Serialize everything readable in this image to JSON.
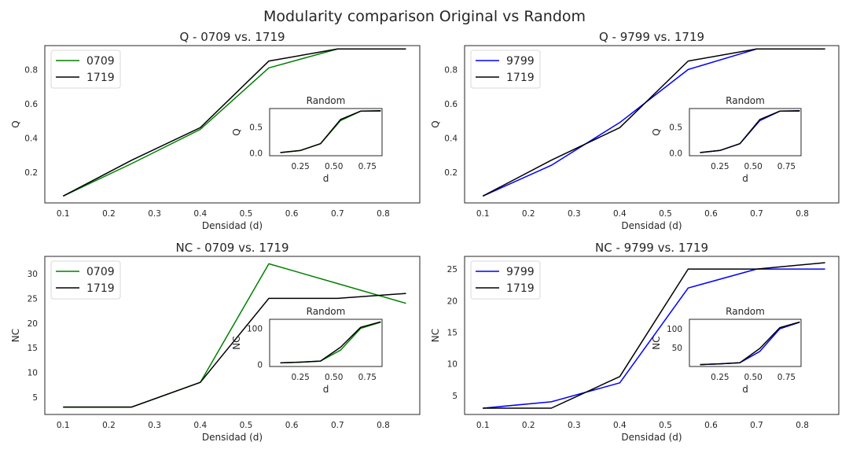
{
  "figure": {
    "title": "Modularity comparison Original vs Random"
  },
  "chart_data": [
    {
      "type": "line",
      "title": "Q - 0709 vs. 1719",
      "xlabel": "Densidad (d)",
      "ylabel": "Q",
      "xlim": [
        0.06,
        0.88
      ],
      "ylim": [
        0.02,
        0.94
      ],
      "xticks": [
        "0.1",
        "0.2",
        "0.3",
        "0.4",
        "0.5",
        "0.6",
        "0.7",
        "0.8"
      ],
      "yticks": [
        "0.2",
        "0.4",
        "0.6",
        "0.8"
      ],
      "grid": false,
      "legend": "upper-left",
      "series": [
        {
          "name": "0709",
          "color": "#008000",
          "x": [
            0.1,
            0.25,
            0.4,
            0.55,
            0.7,
            0.85
          ],
          "y": [
            0.06,
            0.25,
            0.45,
            0.81,
            0.92,
            0.92
          ]
        },
        {
          "name": "1719",
          "color": "#000000",
          "x": [
            0.1,
            0.25,
            0.4,
            0.55,
            0.7,
            0.85
          ],
          "y": [
            0.06,
            0.27,
            0.46,
            0.85,
            0.92,
            0.92
          ]
        }
      ],
      "inset": {
        "title": "Random",
        "xlabel": "d",
        "ylabel": "Q",
        "xlim": [
          0.02,
          0.86
        ],
        "ylim": [
          -0.05,
          0.85
        ],
        "xticks": [
          "0.25",
          "0.50",
          "0.75"
        ],
        "yticks": [
          "0.0",
          "0.5"
        ],
        "series": [
          {
            "color": "#008000",
            "x": [
              0.1,
              0.25,
              0.4,
              0.55,
              0.7,
              0.85
            ],
            "y": [
              0.01,
              0.05,
              0.18,
              0.62,
              0.8,
              0.8
            ]
          },
          {
            "color": "#000000",
            "x": [
              0.1,
              0.25,
              0.4,
              0.55,
              0.7,
              0.85
            ],
            "y": [
              0.01,
              0.05,
              0.18,
              0.64,
              0.8,
              0.81
            ]
          }
        ]
      }
    },
    {
      "type": "line",
      "title": "Q - 9799 vs. 1719",
      "xlabel": "Densidad (d)",
      "ylabel": "Q",
      "xlim": [
        0.06,
        0.88
      ],
      "ylim": [
        0.02,
        0.94
      ],
      "xticks": [
        "0.1",
        "0.2",
        "0.3",
        "0.4",
        "0.5",
        "0.6",
        "0.7",
        "0.8"
      ],
      "yticks": [
        "0.2",
        "0.4",
        "0.6",
        "0.8"
      ],
      "grid": false,
      "legend": "upper-left",
      "series": [
        {
          "name": "9799",
          "color": "#0000ff",
          "x": [
            0.1,
            0.25,
            0.4,
            0.55,
            0.7,
            0.85
          ],
          "y": [
            0.06,
            0.24,
            0.49,
            0.8,
            0.92,
            0.92
          ]
        },
        {
          "name": "1719",
          "color": "#000000",
          "x": [
            0.1,
            0.25,
            0.4,
            0.55,
            0.7,
            0.85
          ],
          "y": [
            0.06,
            0.27,
            0.46,
            0.85,
            0.92,
            0.92
          ]
        }
      ],
      "inset": {
        "title": "Random",
        "xlabel": "d",
        "ylabel": "Q",
        "xlim": [
          0.02,
          0.86
        ],
        "ylim": [
          -0.05,
          0.85
        ],
        "xticks": [
          "0.25",
          "0.50",
          "0.75"
        ],
        "yticks": [
          "0.0",
          "0.5"
        ],
        "series": [
          {
            "color": "#0000ff",
            "x": [
              0.1,
              0.25,
              0.4,
              0.55,
              0.7,
              0.85
            ],
            "y": [
              0.01,
              0.05,
              0.18,
              0.62,
              0.8,
              0.8
            ]
          },
          {
            "color": "#000000",
            "x": [
              0.1,
              0.25,
              0.4,
              0.55,
              0.7,
              0.85
            ],
            "y": [
              0.01,
              0.05,
              0.18,
              0.64,
              0.8,
              0.81
            ]
          }
        ]
      }
    },
    {
      "type": "line",
      "title": "NC - 0709 vs. 1719",
      "xlabel": "Densidad (d)",
      "ylabel": "NC",
      "xlim": [
        0.06,
        0.88
      ],
      "ylim": [
        1.5,
        33.5
      ],
      "xticks": [
        "0.1",
        "0.2",
        "0.3",
        "0.4",
        "0.5",
        "0.6",
        "0.7",
        "0.8"
      ],
      "yticks": [
        "5",
        "10",
        "15",
        "20",
        "25",
        "30"
      ],
      "grid": false,
      "legend": "upper-left",
      "series": [
        {
          "name": "0709",
          "color": "#008000",
          "x": [
            0.1,
            0.25,
            0.4,
            0.55,
            0.7,
            0.85
          ],
          "y": [
            3,
            3,
            8,
            32,
            28,
            24
          ]
        },
        {
          "name": "1719",
          "color": "#000000",
          "x": [
            0.1,
            0.25,
            0.4,
            0.55,
            0.7,
            0.85
          ],
          "y": [
            3,
            3,
            8,
            25,
            25,
            26
          ]
        }
      ],
      "inset": {
        "title": "Random",
        "xlabel": "d",
        "ylabel": "NC",
        "xlim": [
          0.02,
          0.86
        ],
        "ylim": [
          -5,
          125
        ],
        "xticks": [
          "0.25",
          "0.50",
          "0.75"
        ],
        "yticks": [
          "0",
          "100"
        ],
        "series": [
          {
            "color": "#008000",
            "x": [
              0.1,
              0.25,
              0.4,
              0.55,
              0.7,
              0.85
            ],
            "y": [
              5,
              7,
              10,
              40,
              100,
              117
            ]
          },
          {
            "color": "#000000",
            "x": [
              0.1,
              0.25,
              0.4,
              0.55,
              0.7,
              0.85
            ],
            "y": [
              5,
              7,
              10,
              48,
              103,
              118
            ]
          }
        ]
      }
    },
    {
      "type": "line",
      "title": "NC - 9799 vs. 1719",
      "xlabel": "Densidad (d)",
      "ylabel": "NC",
      "xlim": [
        0.06,
        0.88
      ],
      "ylim": [
        2,
        27
      ],
      "xticks": [
        "0.1",
        "0.2",
        "0.3",
        "0.4",
        "0.5",
        "0.6",
        "0.7",
        "0.8"
      ],
      "yticks": [
        "5",
        "10",
        "15",
        "20",
        "25"
      ],
      "grid": false,
      "legend": "upper-left",
      "series": [
        {
          "name": "9799",
          "color": "#0000ff",
          "x": [
            0.1,
            0.25,
            0.4,
            0.55,
            0.7,
            0.85
          ],
          "y": [
            3,
            4,
            7,
            22,
            25,
            25
          ]
        },
        {
          "name": "1719",
          "color": "#000000",
          "x": [
            0.1,
            0.25,
            0.4,
            0.55,
            0.7,
            0.85
          ],
          "y": [
            3,
            3,
            8,
            25,
            25,
            26
          ]
        }
      ],
      "inset": {
        "title": "Random",
        "xlabel": "d",
        "ylabel": "NC",
        "xlim": [
          0.02,
          0.86
        ],
        "ylim": [
          0,
          125
        ],
        "xticks": [
          "0.25",
          "0.50",
          "0.75"
        ],
        "yticks": [
          "50",
          "100"
        ],
        "series": [
          {
            "color": "#0000ff",
            "x": [
              0.1,
              0.25,
              0.4,
              0.55,
              0.7,
              0.85
            ],
            "y": [
              5,
              7,
              10,
              40,
              100,
              117
            ]
          },
          {
            "color": "#000000",
            "x": [
              0.1,
              0.25,
              0.4,
              0.55,
              0.7,
              0.85
            ],
            "y": [
              5,
              7,
              10,
              48,
              103,
              118
            ]
          }
        ]
      }
    }
  ]
}
